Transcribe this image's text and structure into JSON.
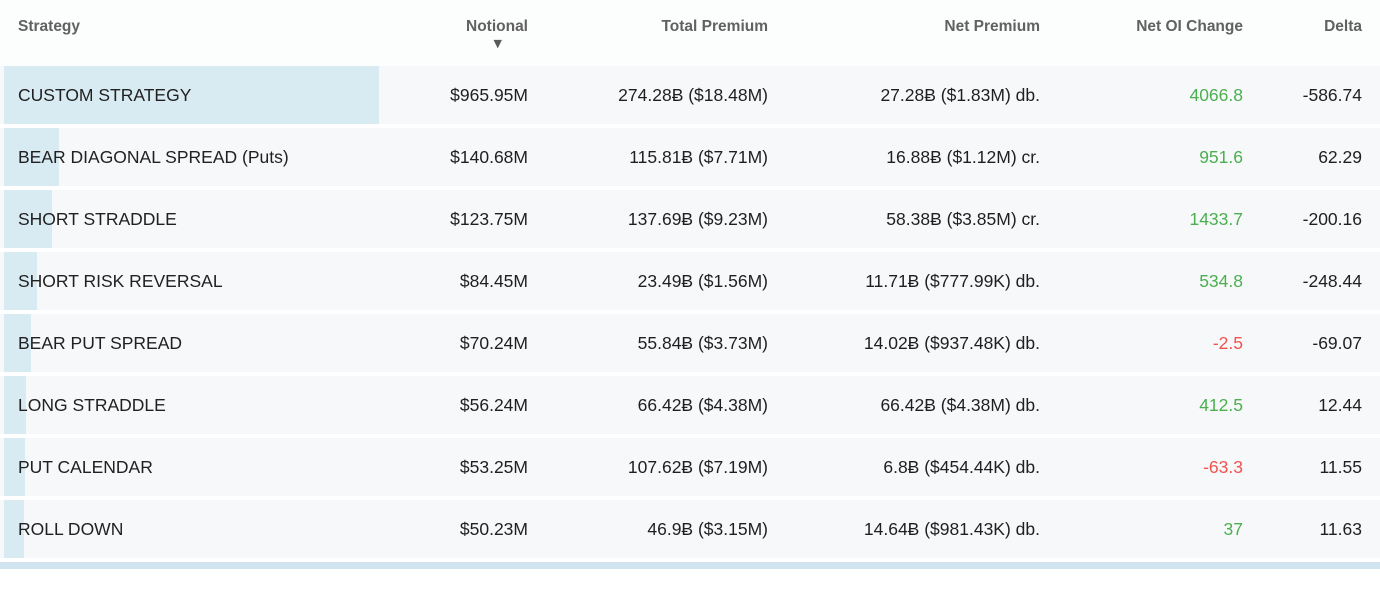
{
  "table": {
    "columns": [
      {
        "key": "strategy",
        "label": "Strategy",
        "align": "left"
      },
      {
        "key": "notional",
        "label": "Notional",
        "align": "right",
        "sorted": true,
        "sort_icon": "▼"
      },
      {
        "key": "total_premium",
        "label": "Total Premium",
        "align": "right"
      },
      {
        "key": "net_premium",
        "label": "Net Premium",
        "align": "right"
      },
      {
        "key": "net_oi_change",
        "label": "Net OI Change",
        "align": "right"
      },
      {
        "key": "delta",
        "label": "Delta",
        "align": "right"
      }
    ],
    "rows": [
      {
        "strategy": "CUSTOM STRATEGY",
        "notional": "$965.95M",
        "notional_value": 965.95,
        "total_premium": "274.28Ƀ ($18.48M)",
        "net_premium": "27.28Ƀ ($1.83M) db.",
        "net_oi_change": "4066.8",
        "delta": "-586.74"
      },
      {
        "strategy": "BEAR DIAGONAL SPREAD (Puts)",
        "notional": "$140.68M",
        "notional_value": 140.68,
        "total_premium": "115.81Ƀ ($7.71M)",
        "net_premium": "16.88Ƀ ($1.12M) cr.",
        "net_oi_change": "951.6",
        "delta": "62.29"
      },
      {
        "strategy": "SHORT STRADDLE",
        "notional": "$123.75M",
        "notional_value": 123.75,
        "total_premium": "137.69Ƀ ($9.23M)",
        "net_premium": "58.38Ƀ ($3.85M) cr.",
        "net_oi_change": "1433.7",
        "delta": "-200.16"
      },
      {
        "strategy": "SHORT RISK REVERSAL",
        "notional": "$84.45M",
        "notional_value": 84.45,
        "total_premium": "23.49Ƀ ($1.56M)",
        "net_premium": "11.71Ƀ ($777.99K) db.",
        "net_oi_change": "534.8",
        "delta": "-248.44"
      },
      {
        "strategy": "BEAR PUT SPREAD",
        "notional": "$70.24M",
        "notional_value": 70.24,
        "total_premium": "55.84Ƀ ($3.73M)",
        "net_premium": "14.02Ƀ ($937.48K) db.",
        "net_oi_change": "-2.5",
        "delta": "-69.07"
      },
      {
        "strategy": "LONG STRADDLE",
        "notional": "$56.24M",
        "notional_value": 56.24,
        "total_premium": "66.42Ƀ ($4.38M)",
        "net_premium": "66.42Ƀ ($4.38M) db.",
        "net_oi_change": "412.5",
        "delta": "12.44"
      },
      {
        "strategy": "PUT CALENDAR",
        "notional": "$53.25M",
        "notional_value": 53.25,
        "total_premium": "107.62Ƀ ($7.19M)",
        "net_premium": "6.8Ƀ ($454.44K) db.",
        "net_oi_change": "-63.3",
        "delta": "11.55"
      },
      {
        "strategy": "ROLL DOWN",
        "notional": "$50.23M",
        "notional_value": 50.23,
        "total_premium": "46.9Ƀ ($3.15M)",
        "net_premium": "14.64Ƀ ($981.43K) db.",
        "net_oi_change": "37",
        "delta": "11.63"
      }
    ],
    "colors": {
      "positive": "#4caf50",
      "negative": "#ef5350",
      "notional_bar": "#d9ebf2",
      "bottom_strip": "#cfe4ee"
    }
  }
}
